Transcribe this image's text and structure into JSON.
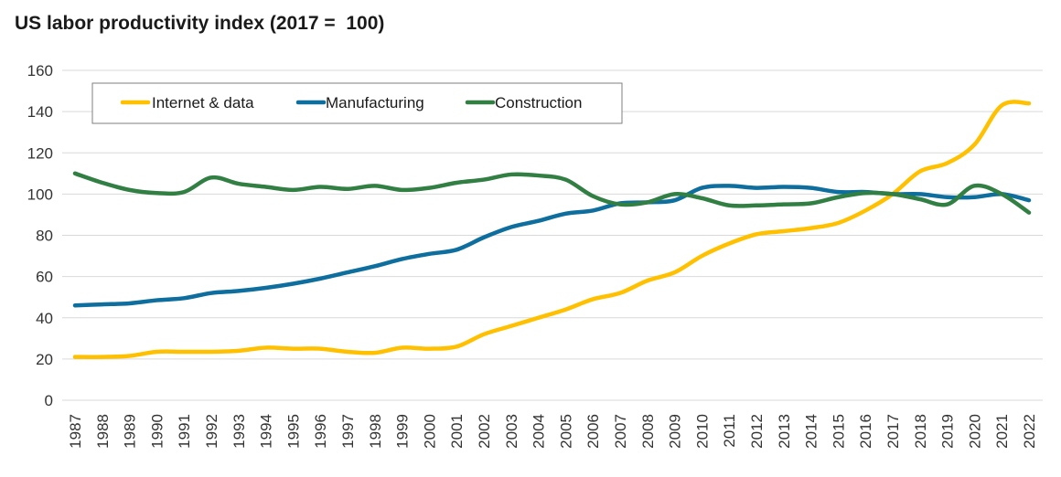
{
  "chart_data": {
    "type": "line",
    "title": "US labor productivity index (2017 =  100)",
    "xlabel": "",
    "ylabel": "",
    "ylim": [
      0,
      160
    ],
    "yticks": [
      0,
      20,
      40,
      60,
      80,
      100,
      120,
      140,
      160
    ],
    "grid": true,
    "legend_position": "top-left",
    "x": [
      "1987",
      "1988",
      "1989",
      "1990",
      "1991",
      "1992",
      "1993",
      "1994",
      "1995",
      "1996",
      "1997",
      "1998",
      "1999",
      "2000",
      "2001",
      "2002",
      "2003",
      "2004",
      "2005",
      "2006",
      "2007",
      "2008",
      "2009",
      "2010",
      "2011",
      "2012",
      "2013",
      "2014",
      "2015",
      "2016",
      "2017",
      "2018",
      "2019",
      "2020",
      "2021",
      "2022"
    ],
    "series": [
      {
        "name": "Internet & data",
        "color": "#FFC000",
        "values": [
          21,
          21,
          21.5,
          23.5,
          23.5,
          23.5,
          24,
          25.5,
          25,
          25,
          23.5,
          23,
          25.5,
          25,
          26,
          32,
          36,
          40,
          44,
          49,
          52,
          58,
          62,
          70,
          76,
          80.5,
          82,
          83.5,
          86,
          92,
          100,
          111,
          115,
          124,
          143,
          144
        ]
      },
      {
        "name": "Manufacturing",
        "color": "#0E6E9E",
        "values": [
          46,
          46.5,
          47,
          48.5,
          49.5,
          52,
          53,
          54.5,
          56.5,
          59,
          62,
          65,
          68.5,
          71,
          73,
          79,
          84,
          87,
          90.5,
          92,
          95.5,
          96,
          97,
          103,
          104,
          103,
          103.5,
          103,
          101,
          101,
          100,
          100,
          98.5,
          98.5,
          100,
          97
        ]
      },
      {
        "name": "Construction",
        "color": "#317F43",
        "values": [
          110,
          105.5,
          102,
          100.5,
          101,
          108,
          105,
          103.5,
          102,
          103.5,
          102.5,
          104,
          102,
          103,
          105.5,
          107,
          109.5,
          109,
          107,
          99,
          95,
          96,
          100,
          98,
          94.5,
          94.5,
          95,
          95.5,
          98.5,
          100.5,
          100,
          97.5,
          95,
          104,
          100,
          91
        ]
      }
    ]
  }
}
